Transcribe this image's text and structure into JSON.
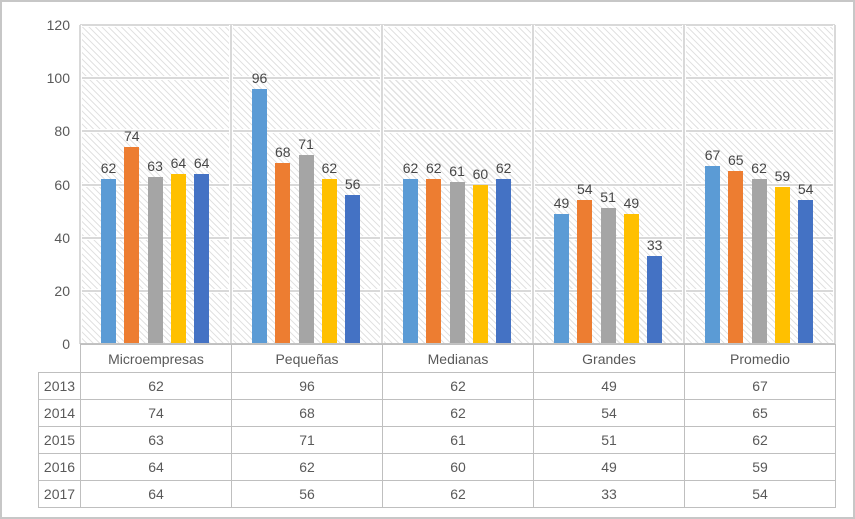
{
  "chart_data": {
    "type": "bar",
    "title": "",
    "subtitle": "",
    "categories": [
      "Microempresas",
      "Pequeñas",
      "Medianas",
      "Grandes",
      "Promedio"
    ],
    "series": [
      {
        "name": "2013",
        "color": "#5B9BD5",
        "values": [
          62,
          96,
          62,
          49,
          67
        ]
      },
      {
        "name": "2014",
        "color": "#ED7D31",
        "values": [
          74,
          68,
          62,
          54,
          65
        ]
      },
      {
        "name": "2015",
        "color": "#A5A5A5",
        "values": [
          63,
          71,
          61,
          51,
          62
        ]
      },
      {
        "name": "2016",
        "color": "#FFC000",
        "values": [
          64,
          62,
          60,
          49,
          59
        ]
      },
      {
        "name": "2017",
        "color": "#4472C4",
        "values": [
          64,
          56,
          62,
          33,
          54
        ]
      }
    ],
    "y_axis": {
      "min": 0,
      "max": 120,
      "step": 20,
      "tick_labels": [
        "0",
        "20",
        "40",
        "60",
        "80",
        "100",
        "120"
      ]
    },
    "xlabel": "",
    "ylabel": "",
    "grid": "horizontal and vertical major gridlines on",
    "legend_position": "none (years shown as data table row headers)",
    "data_labels": "outside end, shown above each bar",
    "plot_area_fill": "light diagonal hatch pattern",
    "colors": {
      "gridline": "#D9D9D9",
      "axis_line": "#C3C3C3",
      "axis_text": "#595959",
      "data_label_text": "#474747",
      "table_border": "#BFBFBF",
      "chart_border": "#C7C7C7",
      "background": "#FFFFFF"
    }
  },
  "table": {
    "corner_label": "",
    "column_headers": [
      "Microempresas",
      "Pequeñas",
      "Medianas",
      "Grandes",
      "Promedio"
    ],
    "rows": [
      {
        "label": "2013",
        "values": [
          62,
          96,
          62,
          49,
          67
        ]
      },
      {
        "label": "2014",
        "values": [
          74,
          68,
          62,
          54,
          65
        ]
      },
      {
        "label": "2015",
        "values": [
          63,
          71,
          61,
          51,
          62
        ]
      },
      {
        "label": "2016",
        "values": [
          64,
          62,
          60,
          49,
          59
        ]
      },
      {
        "label": "2017",
        "values": [
          64,
          56,
          62,
          33,
          54
        ]
      }
    ]
  }
}
